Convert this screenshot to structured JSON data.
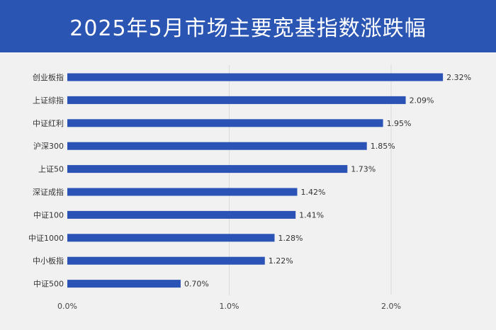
{
  "title": "2025年5月市场主要宽基指数涨跌幅",
  "colors": {
    "header": "#2b55b3",
    "bar": "#2a53b5",
    "grid": "#d9d9d9",
    "background": "#f1f1f1"
  },
  "chart_data": {
    "type": "bar",
    "orientation": "horizontal",
    "categories": [
      "创业板指",
      "上证综指",
      "中证红利",
      "沪深300",
      "上证50",
      "深证成指",
      "中证100",
      "中证1000",
      "中小板指",
      "中证500"
    ],
    "values": [
      2.32,
      2.09,
      1.95,
      1.85,
      1.73,
      1.42,
      1.41,
      1.28,
      1.22,
      0.7
    ],
    "value_labels": [
      "2.32%",
      "2.09%",
      "1.95%",
      "1.85%",
      "1.73%",
      "1.42%",
      "1.41%",
      "1.28%",
      "1.22%",
      "0.70%"
    ],
    "x_ticks": [
      0,
      1,
      2
    ],
    "x_tick_labels": [
      "0.0%",
      "1.0%",
      "2.0%"
    ],
    "xlim": [
      0,
      2.5
    ],
    "grid": true,
    "xlabel": "",
    "ylabel": ""
  }
}
